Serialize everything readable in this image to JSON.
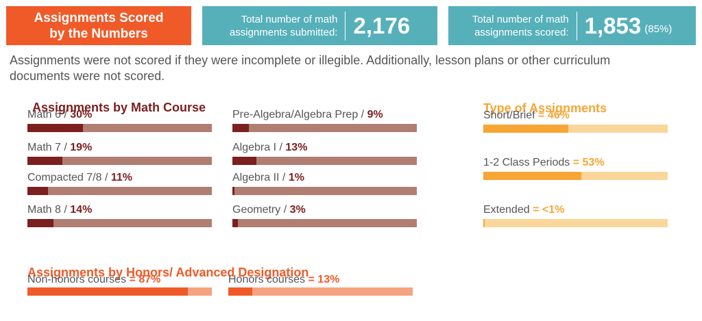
{
  "banner": {
    "title": "Assignments Scored\nby the Numbers",
    "submitted_label": "Total number of math\nassignments submitted:",
    "submitted_value": "2,176",
    "scored_label": "Total number of math\nassignments scored:",
    "scored_value": "1,853",
    "scored_pct": "(85%)"
  },
  "note": "Assignments were not scored if they were incomplete or illegible. Additionally, lesson plans or other curriculum documents were not scored.",
  "colors": {
    "orange": "#f05a28",
    "teal": "#56b0ba",
    "course_fill": "#7b1f1f",
    "course_track": "#b07e72",
    "type_fill": "#f7a636",
    "type_track": "#fbd69a",
    "honors_fill": "#f05a28",
    "honors_track": "#f6a37f"
  },
  "chart_data": [
    {
      "type": "bar",
      "title": "Assignments by Math Course",
      "categories": [
        "Math 6",
        "Math 7",
        "Compacted 7/8",
        "Math 8",
        "Pre-Algebra/Algebra Prep",
        "Algebra I",
        "Algebra II",
        "Geometry"
      ],
      "labels": [
        "30%",
        "19%",
        "11%",
        "14%",
        "9%",
        "13%",
        "1%",
        "3%"
      ],
      "values": [
        30,
        19,
        11,
        14,
        9,
        13,
        1,
        3
      ],
      "xlim": [
        0,
        100
      ]
    },
    {
      "type": "bar",
      "title": "Type of Assignments",
      "categories": [
        "Short/Brief",
        "1-2 Class Periods",
        "Extended"
      ],
      "labels": [
        "= 46%",
        "= 53%",
        "= <1%"
      ],
      "values": [
        46,
        53,
        0.5
      ],
      "xlim": [
        0,
        100
      ]
    },
    {
      "type": "bar",
      "title": "Assignments by Honors/ Advanced Designation",
      "categories": [
        "Non-honors courses",
        "Honors courses"
      ],
      "labels": [
        "= 87%",
        "= 13%"
      ],
      "values": [
        87,
        13
      ],
      "xlim": [
        0,
        100
      ]
    }
  ]
}
